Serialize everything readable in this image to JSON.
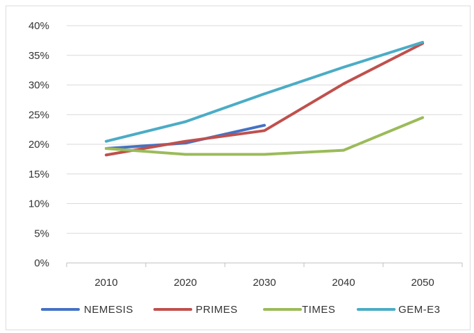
{
  "chart_data": {
    "type": "line",
    "title": "",
    "xlabel": "",
    "ylabel": "",
    "x": [
      "2010",
      "2020",
      "2030",
      "2040",
      "2050"
    ],
    "y_ticks": [
      "0%",
      "5%",
      "10%",
      "15%",
      "20%",
      "25%",
      "30%",
      "35%",
      "40%"
    ],
    "ylim": [
      0,
      40
    ],
    "grid": true,
    "legend": "bottom",
    "series": [
      {
        "name": "NEMESIS",
        "color": "#4472c4",
        "values": [
          19.3,
          20.2,
          23.2,
          null,
          null
        ]
      },
      {
        "name": "PRIMES",
        "color": "#c0504d",
        "values": [
          18.2,
          20.5,
          22.3,
          30.2,
          37.0
        ]
      },
      {
        "name": "TIMES",
        "color": "#9bbb59",
        "values": [
          19.3,
          18.3,
          18.3,
          19.0,
          24.5
        ]
      },
      {
        "name": "GEM-E3",
        "color": "#4bacc6",
        "values": [
          20.5,
          23.8,
          28.5,
          33.0,
          37.2
        ]
      }
    ]
  }
}
